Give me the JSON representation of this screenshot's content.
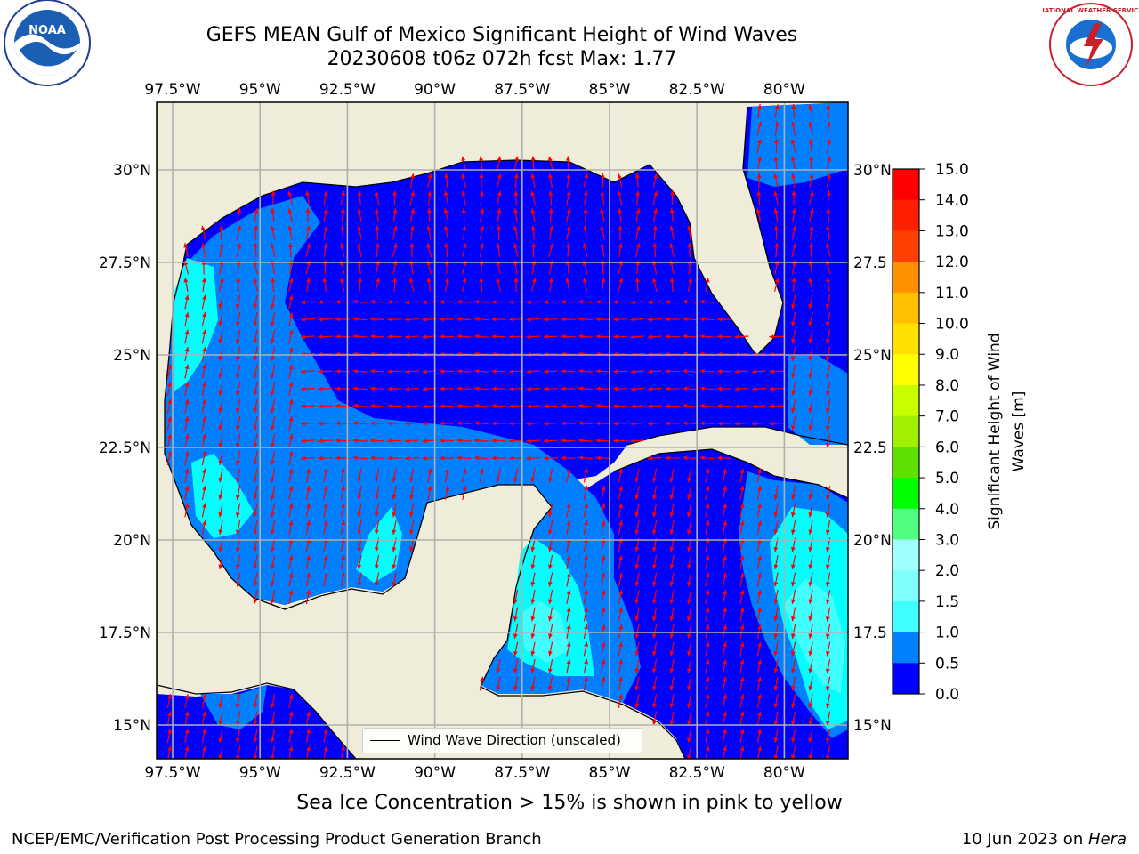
{
  "header": {
    "title_line1": "GEFS MEAN Gulf of Mexico Significant Height of Wind Waves",
    "title_line2": "20230608 t06z 072h fcst   Max: 1.77"
  },
  "logos": {
    "noaa_text": "NOAA",
    "nws_text": "NATIONAL WEATHER SERVICE"
  },
  "map": {
    "lon_labels": [
      "97.5°W",
      "95°W",
      "92.5°W",
      "90°W",
      "87.5°W",
      "85°W",
      "82.5°W",
      "80°W"
    ],
    "lat_labels": [
      "30°N",
      "27.5°N",
      "25°N",
      "22.5°N",
      "20°N",
      "17.5°N",
      "15°N"
    ],
    "right_lat_labels": [
      "30°N",
      "27.5",
      "25°N",
      "22.5",
      "20°N",
      "17.5",
      "15°N"
    ],
    "legend_label": "Wind Wave Direction (unscaled)",
    "colors": {
      "land": "#efedd9",
      "ocean_0_05": "#0000ff",
      "ocean_05_10": "#0080ff",
      "ocean_10_15": "#00ffff",
      "ocean_15_20": "#40ffff",
      "arrow": "#ff0000"
    }
  },
  "colorbar": {
    "label": "Significant Height of Wind Waves [m]",
    "label_line1": "Significant Height of Wind",
    "label_line2": "Waves [m]",
    "ticks": [
      "15.0",
      "14.0",
      "13.0",
      "12.0",
      "11.0",
      "10.0",
      "9.0",
      "8.0",
      "7.0",
      "6.0",
      "5.0",
      "4.0",
      "3.0",
      "2.0",
      "1.5",
      "1.0",
      "0.5",
      "0.0"
    ],
    "colors": [
      "#0000ff",
      "#0080ff",
      "#00ffff",
      "#40ffff",
      "#80ffff",
      "#a0ffff",
      "#50ff80",
      "#00e000",
      "#00ff00",
      "#60e000",
      "#a0f000",
      "#c8ff00",
      "#e0f000",
      "#ffff00",
      "#ffe000",
      "#ffc000",
      "#ff9000",
      "#ff7000",
      "#ff4000",
      "#ff2000",
      "#ff0000"
    ]
  },
  "footer": {
    "sea_ice_note": "Sea Ice Concentration > 15% is shown in pink to yellow",
    "left": "NCEP/EMC/Verification Post Processing Product Generation Branch",
    "date": "10 Jun 2023 on ",
    "host": "Hera"
  }
}
